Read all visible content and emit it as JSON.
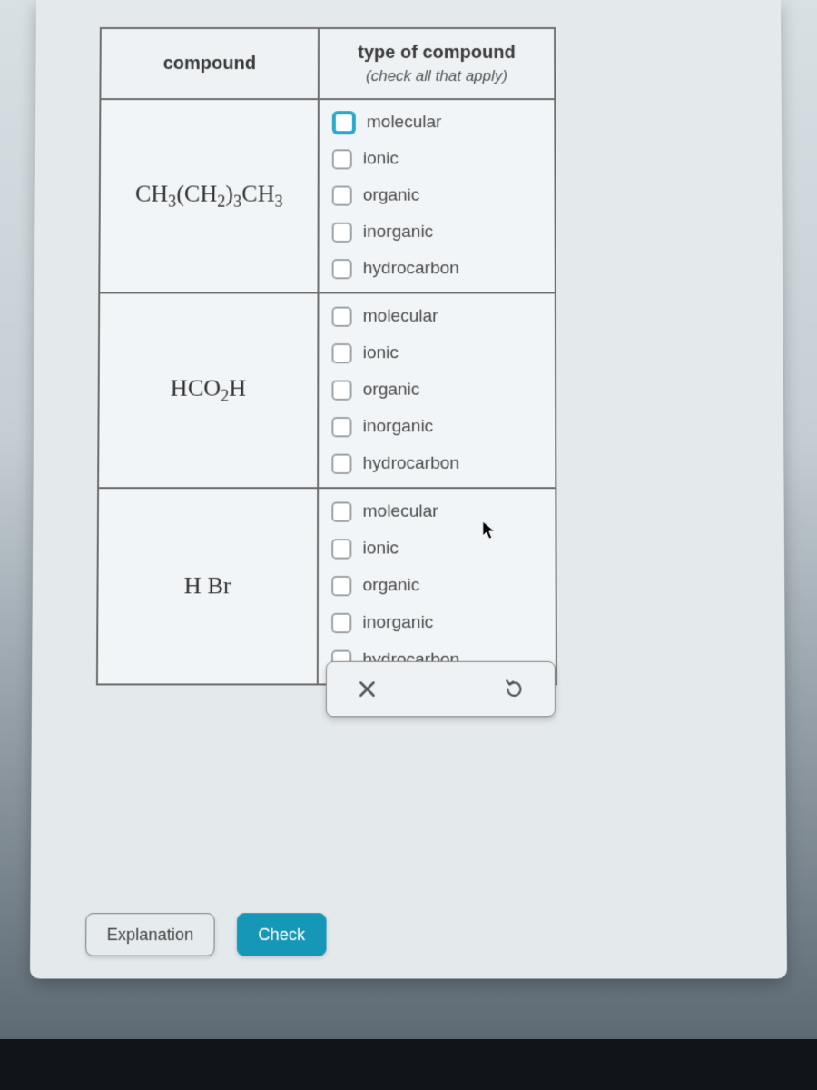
{
  "table": {
    "headers": {
      "compound": "compound",
      "type": "type of compound",
      "type_sub": "(check all that apply)"
    },
    "option_labels": [
      "molecular",
      "ionic",
      "organic",
      "inorganic",
      "hydrocarbon"
    ],
    "rows": [
      {
        "formula_html": "CH<sub>3</sub>(CH<sub>2</sub>)<sub>3</sub>CH<sub>3</sub>",
        "focused_index": 0
      },
      {
        "formula_html": "HCO<sub>2</sub>H",
        "focused_index": -1
      },
      {
        "formula_html": "H Br",
        "focused_index": -1
      }
    ]
  },
  "toolbar": {
    "clear_icon": "close-icon",
    "reset_icon": "undo-icon"
  },
  "buttons": {
    "explanation": "Explanation",
    "check": "Check"
  },
  "colors": {
    "accent": "#1797b8",
    "focus_ring": "#2aa9c9",
    "border": "#6e6e6e",
    "text": "#4a4a4a"
  }
}
